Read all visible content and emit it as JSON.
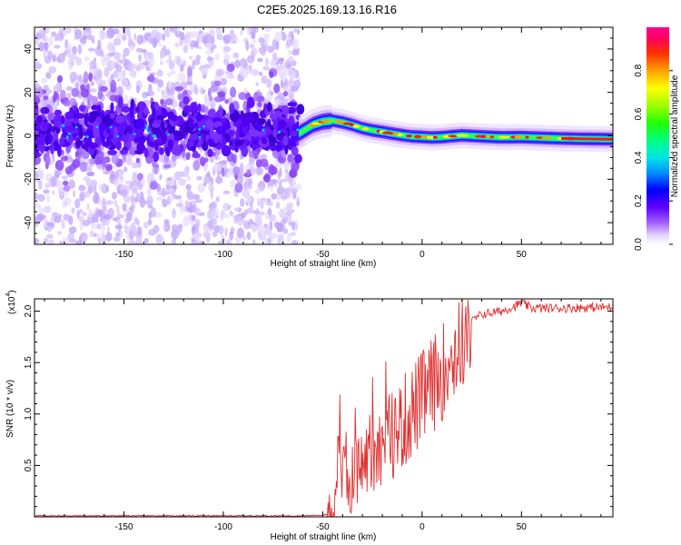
{
  "figure": {
    "title": "C2E5.2025.169.13.16.R16"
  },
  "chart_data": [
    {
      "type": "heatmap",
      "name": "spectrogram",
      "xlabel": "Height of straight line (km)",
      "ylabel": "Frequency (Hz)",
      "xlim": [
        -195,
        96
      ],
      "ylim": [
        -50,
        50
      ],
      "xticks": [
        -150,
        -100,
        -50,
        0,
        50
      ],
      "yticks": [
        -40,
        -20,
        0,
        20,
        40
      ],
      "ridge": {
        "x": [
          -195,
          -150,
          -100,
          -62,
          -55,
          -50,
          -45,
          -40,
          -35,
          -30,
          -25,
          -20,
          -15,
          -10,
          -5,
          0,
          5,
          10,
          20,
          30,
          40,
          50,
          60,
          70,
          80,
          96
        ],
        "y": [
          3,
          3,
          2.5,
          1,
          5,
          6.5,
          7,
          6.2,
          5,
          3.5,
          2.5,
          1.8,
          1,
          0.3,
          -0.3,
          -0.5,
          -0.8,
          -0.6,
          0.2,
          -0.3,
          -0.7,
          -0.6,
          -0.9,
          -1.2,
          -1.4,
          -1.6
        ]
      },
      "colorbar": {
        "label": "Normalized spectral amplitude",
        "range": [
          0.0,
          1.0
        ],
        "ticks": [
          "0.0",
          "0.2",
          "0.4",
          "0.6",
          "0.8"
        ],
        "tick_values": [
          0.0,
          0.2,
          0.4,
          0.6,
          0.8
        ]
      }
    },
    {
      "type": "line",
      "name": "snr",
      "xlabel": "Height of straight line (km)",
      "ylabel": "SNR (10 * v/v)",
      "multiplier_label": "(x10",
      "multiplier_exp": "4",
      "multiplier_close": ")",
      "color": "#e03030",
      "xlim": [
        -195,
        96
      ],
      "ylim": [
        0,
        2.12
      ],
      "xticks": [
        -150,
        -100,
        -50,
        0,
        50
      ],
      "yticks": [
        0.5,
        1.0,
        1.5,
        2.0
      ],
      "ytick_labels": [
        "0.5",
        "1.0",
        "1.5",
        "2.0"
      ],
      "series_knots": {
        "x": [
          -195,
          -60,
          -48,
          -45,
          -43,
          -42,
          -41,
          -38,
          -30,
          -20,
          -10,
          0,
          10,
          20,
          25,
          30,
          40,
          48,
          50,
          55,
          70,
          96
        ],
        "y": [
          0.01,
          0.01,
          0.02,
          0.05,
          0.35,
          1.0,
          0.5,
          0.35,
          0.55,
          0.75,
          0.95,
          1.2,
          1.45,
          1.75,
          1.9,
          1.97,
          2.0,
          2.06,
          2.08,
          2.03,
          2.03,
          2.04
        ]
      }
    }
  ]
}
